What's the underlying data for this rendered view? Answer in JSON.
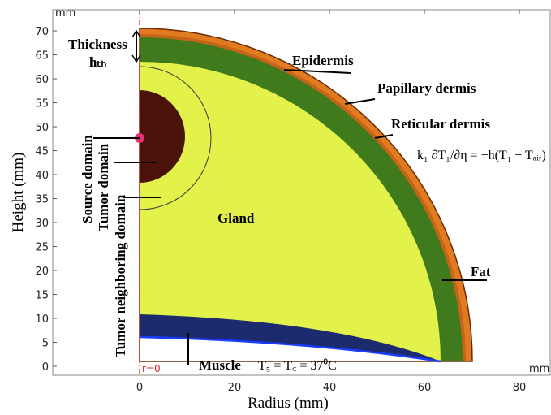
{
  "axes": {
    "unit_top": "mm",
    "unit_right": "mm",
    "origin_label": "r=0",
    "x_axis": {
      "title": "Radius (mm)",
      "ticks": [
        0,
        20,
        40,
        60,
        80
      ]
    },
    "y_axis": {
      "title": "Height (mm)",
      "ticks": [
        0,
        5,
        10,
        15,
        20,
        25,
        30,
        35,
        40,
        45,
        50,
        55,
        60,
        65,
        70
      ]
    }
  },
  "labels": {
    "thickness": "Thickness",
    "thickness_symbol": "hₜₕ",
    "epidermis": "Epidermis",
    "papillary": "Papillary dermis",
    "reticular": "Reticular dermis",
    "gland": "Gland",
    "fat": "Fat",
    "muscle": "Muscle",
    "source": "Source domain",
    "tumor": "Tumor domain",
    "neighbor": "Tumor neighboring domain"
  },
  "equations": {
    "skin": "k₁ ∂T₁/∂η = −h(T₁ − Tₐᵢᵣ)",
    "muscle": "T₅ = T꜀ = 37⁰C"
  }
}
